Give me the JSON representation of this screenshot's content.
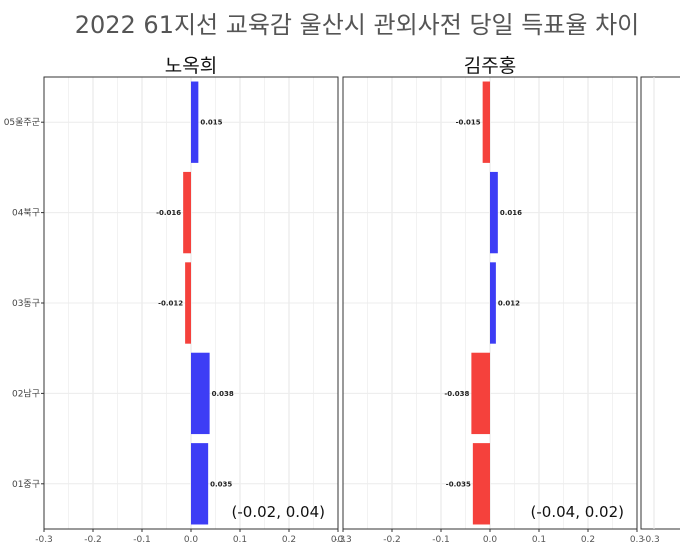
{
  "chart_data": {
    "type": "bar",
    "orientation": "horizontal",
    "title": "2022 61지선 교육감 울산시  관외사전 당일 득표율 차이",
    "categories": [
      "05울주군",
      "04북구",
      "03동구",
      "02남구",
      "01중구"
    ],
    "xlim": [
      -0.3,
      0.3
    ],
    "x_ticks": [
      "-0.3",
      "-0.2",
      "-0.1",
      "0.0",
      "0.1",
      "0.2",
      "0.3"
    ],
    "grid": true,
    "colors": {
      "positive": "#3d3df5",
      "negative": "#f5413c"
    },
    "facets": [
      {
        "name": "노옥희",
        "values": [
          0.015,
          -0.016,
          -0.012,
          0.038,
          0.035
        ],
        "labels": [
          "0.015",
          "-0.016",
          "-0.012",
          "0.038",
          "0.035"
        ],
        "range_label": "(-0.02, 0.04)"
      },
      {
        "name": "김주홍",
        "values": [
          -0.015,
          0.016,
          0.012,
          -0.038,
          -0.035
        ],
        "labels": [
          "-0.015",
          "0.016",
          "0.012",
          "-0.038",
          "-0.035"
        ],
        "range_label": "(-0.04, 0.02)"
      }
    ]
  }
}
